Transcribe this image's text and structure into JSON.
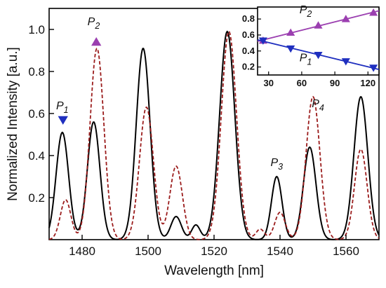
{
  "chart_data": [
    {
      "type": "line",
      "xlabel": "Wavelength [nm]",
      "ylabel": "Normalized Intensity [a.u.]",
      "xlim": [
        1470,
        1570
      ],
      "ylim": [
        0,
        1.1
      ],
      "xticks": [
        1480,
        1500,
        1520,
        1540,
        1560
      ],
      "yticks": [
        0.2,
        0.4,
        0.6,
        0.8,
        1.0
      ],
      "ytick_labels": [
        "0.2",
        "0.4",
        "0.6",
        "0.8",
        "1.0"
      ],
      "grid": false,
      "series": [
        {
          "style": "solid",
          "color": "#000000",
          "peaks": [
            {
              "x": 1474.0,
              "y": 0.51,
              "w": 1.9
            },
            {
              "x": 1483.5,
              "y": 0.56,
              "w": 1.9
            },
            {
              "x": 1498.5,
              "y": 0.91,
              "w": 2.1
            },
            {
              "x": 1508.5,
              "y": 0.11,
              "w": 1.6
            },
            {
              "x": 1514.5,
              "y": 0.07,
              "w": 1.3
            },
            {
              "x": 1524.0,
              "y": 0.99,
              "w": 2.3
            },
            {
              "x": 1539.0,
              "y": 0.3,
              "w": 1.6
            },
            {
              "x": 1549.0,
              "y": 0.44,
              "w": 1.9
            },
            {
              "x": 1564.5,
              "y": 0.68,
              "w": 2.1
            }
          ]
        },
        {
          "style": "dashed",
          "color": "#9b1c1c",
          "peaks": [
            {
              "x": 1475.0,
              "y": 0.19,
              "w": 1.6
            },
            {
              "x": 1484.5,
              "y": 0.91,
              "w": 2.1
            },
            {
              "x": 1499.5,
              "y": 0.63,
              "w": 2.1
            },
            {
              "x": 1508.5,
              "y": 0.35,
              "w": 1.9
            },
            {
              "x": 1524.5,
              "y": 0.99,
              "w": 2.3
            },
            {
              "x": 1534.0,
              "y": 0.05,
              "w": 1.3
            },
            {
              "x": 1540.0,
              "y": 0.13,
              "w": 1.6
            },
            {
              "x": 1550.0,
              "y": 0.68,
              "w": 2.1
            },
            {
              "x": 1564.5,
              "y": 0.43,
              "w": 1.9
            }
          ]
        }
      ],
      "annotations": [
        {
          "text": "P",
          "sub": "1",
          "x": 1474.0,
          "y": 0.62,
          "marker": "down-triangle",
          "marker_x": 1474.2,
          "marker_y": 0.57,
          "marker_color": "#1f2fbf"
        },
        {
          "text": "P",
          "sub": "2",
          "x": 1483.5,
          "y": 1.02,
          "marker": "up-triangle",
          "marker_x": 1484.3,
          "marker_y": 0.94,
          "marker_color": "#9b3fb0"
        },
        {
          "text": "P",
          "sub": "3",
          "x": 1539.0,
          "y": 0.35
        },
        {
          "text": "P",
          "sub": "4",
          "x": 1551.5,
          "y": 0.63
        }
      ]
    },
    {
      "type": "line",
      "role": "inset",
      "xlim": [
        20,
        130
      ],
      "ylim": [
        0.1,
        0.95
      ],
      "xticks": [
        30,
        60,
        90,
        120
      ],
      "yticks": [
        0.2,
        0.4,
        0.6,
        0.8
      ],
      "ytick_labels": [
        "0.2",
        "0.4",
        "0.6",
        "0.8"
      ],
      "series": [
        {
          "name": "P2",
          "color": "#9b3fb0",
          "marker": "up-triangle",
          "x": [
            25,
            50,
            75,
            100,
            125
          ],
          "y": [
            0.53,
            0.63,
            0.72,
            0.8,
            0.88
          ]
        },
        {
          "name": "P1",
          "color": "#1f2fbf",
          "marker": "down-triangle",
          "x": [
            25,
            50,
            75,
            100,
            125
          ],
          "y": [
            0.53,
            0.43,
            0.35,
            0.27,
            0.19
          ]
        }
      ],
      "labels": [
        {
          "text": "P",
          "sub": "2",
          "x": 58,
          "y": 0.87
        },
        {
          "text": "P",
          "sub": "1",
          "x": 58,
          "y": 0.27
        }
      ]
    }
  ]
}
